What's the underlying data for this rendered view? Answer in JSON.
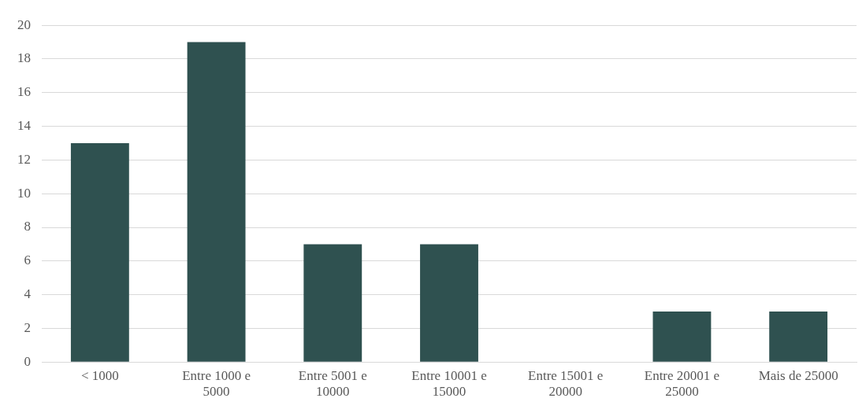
{
  "chart_data": {
    "type": "bar",
    "categories": [
      "< 1000",
      "Entre 1000 e 5000",
      "Entre 5001 e 10000",
      "Entre 10001 e 15000",
      "Entre 15001 e 20000",
      "Entre 20001 e 25000",
      "Mais de 25000"
    ],
    "values": [
      13,
      19,
      7,
      7,
      0,
      3,
      3
    ],
    "color": "#2f5150",
    "ylim": [
      0,
      20
    ],
    "yticks": [
      0,
      2,
      4,
      6,
      8,
      10,
      12,
      14,
      16,
      18,
      20
    ],
    "grid": "y",
    "legend": false
  }
}
